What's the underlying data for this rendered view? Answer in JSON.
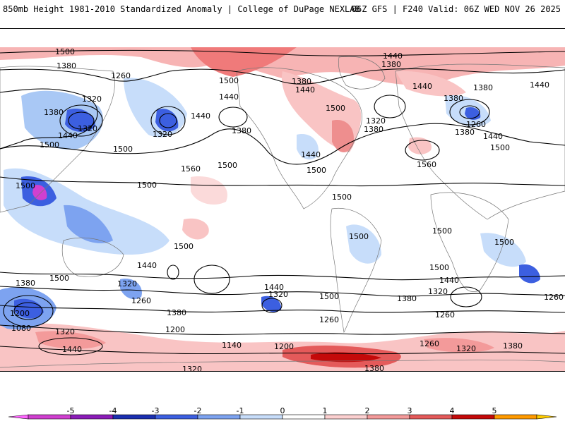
{
  "header": {
    "title": "850mb Height 1981-2010 Standardized Anomaly | College of DuPage NEXLAB",
    "model_info": "06Z GFS | F240 Valid: 06Z WED NOV 26 2025"
  },
  "contour_labels": [
    {
      "id": "c1",
      "text": "1500"
    },
    {
      "id": "c2",
      "text": "1380"
    },
    {
      "id": "c3",
      "text": "1260"
    },
    {
      "id": "c4",
      "text": "1320"
    },
    {
      "id": "c5",
      "text": "1380"
    },
    {
      "id": "c6",
      "text": "1320"
    },
    {
      "id": "c7",
      "text": "1440"
    },
    {
      "id": "c8",
      "text": "1500"
    },
    {
      "id": "c9",
      "text": "1500"
    },
    {
      "id": "c10",
      "text": "1320"
    },
    {
      "id": "c11",
      "text": "1440"
    },
    {
      "id": "c12",
      "text": "1500"
    },
    {
      "id": "c13",
      "text": "1440"
    },
    {
      "id": "c14",
      "text": "1380"
    },
    {
      "id": "c15",
      "text": "1560"
    },
    {
      "id": "c16",
      "text": "1500"
    },
    {
      "id": "c17",
      "text": "1440"
    },
    {
      "id": "c18",
      "text": "1380"
    },
    {
      "id": "c19",
      "text": "1380"
    },
    {
      "id": "c20",
      "text": "1440"
    },
    {
      "id": "c21",
      "text": "1500"
    },
    {
      "id": "c22",
      "text": "1440"
    },
    {
      "id": "c23",
      "text": "1500"
    },
    {
      "id": "c24",
      "text": "1320"
    },
    {
      "id": "c25",
      "text": "1380"
    },
    {
      "id": "c26",
      "text": "1440"
    },
    {
      "id": "c27",
      "text": "1380"
    },
    {
      "id": "c28",
      "text": "1440"
    },
    {
      "id": "c29",
      "text": "1380"
    },
    {
      "id": "c30",
      "text": "1260"
    },
    {
      "id": "c31",
      "text": "1380"
    },
    {
      "id": "c32",
      "text": "1440"
    },
    {
      "id": "c33",
      "text": "1500"
    },
    {
      "id": "c34",
      "text": "1560"
    },
    {
      "id": "c35",
      "text": "1500"
    },
    {
      "id": "c36",
      "text": "1500"
    },
    {
      "id": "c37",
      "text": "1500"
    },
    {
      "id": "c38",
      "text": "1500"
    },
    {
      "id": "c39",
      "text": "1500"
    },
    {
      "id": "c40",
      "text": "1500"
    },
    {
      "id": "c41",
      "text": "1500"
    },
    {
      "id": "c42",
      "text": "1440"
    },
    {
      "id": "c43",
      "text": "1500"
    },
    {
      "id": "c44",
      "text": "1320"
    },
    {
      "id": "c45",
      "text": "1260"
    },
    {
      "id": "c46",
      "text": "1380"
    },
    {
      "id": "c47",
      "text": "1440"
    },
    {
      "id": "c48",
      "text": "1320"
    },
    {
      "id": "c49",
      "text": "1380"
    },
    {
      "id": "c50",
      "text": "1200"
    },
    {
      "id": "c51",
      "text": "1260"
    },
    {
      "id": "c52",
      "text": "1500"
    },
    {
      "id": "c53",
      "text": "1380"
    },
    {
      "id": "c54",
      "text": "1500"
    },
    {
      "id": "c55",
      "text": "1440"
    },
    {
      "id": "c56",
      "text": "1320"
    },
    {
      "id": "c57",
      "text": "1260"
    },
    {
      "id": "c58",
      "text": "1260"
    },
    {
      "id": "c59",
      "text": "1080"
    },
    {
      "id": "c60",
      "text": "1200"
    },
    {
      "id": "c61",
      "text": "1320"
    },
    {
      "id": "c62",
      "text": "1440"
    },
    {
      "id": "c63",
      "text": "1140"
    },
    {
      "id": "c64",
      "text": "1200"
    },
    {
      "id": "c65",
      "text": "1260"
    },
    {
      "id": "c66",
      "text": "1320"
    },
    {
      "id": "c67",
      "text": "1380"
    },
    {
      "id": "c68",
      "text": "1380"
    },
    {
      "id": "c69",
      "text": "1320"
    }
  ],
  "colorbar": {
    "ticks": [
      "-5",
      "-4",
      "-3",
      "-2",
      "-1",
      "0",
      "1",
      "2",
      "3",
      "4",
      "5"
    ],
    "colors": [
      "#d040d0",
      "#8b1cb8",
      "#1a2fb0",
      "#3c5fe0",
      "#7da3f0",
      "#c7ddfa",
      "#ffffff",
      "#fcd0d0",
      "#f39a9a",
      "#e45a5a",
      "#c40a0a",
      "#ff9a00"
    ],
    "low_end_color": "#ff66ff",
    "high_end_color": "#ffcc00"
  }
}
